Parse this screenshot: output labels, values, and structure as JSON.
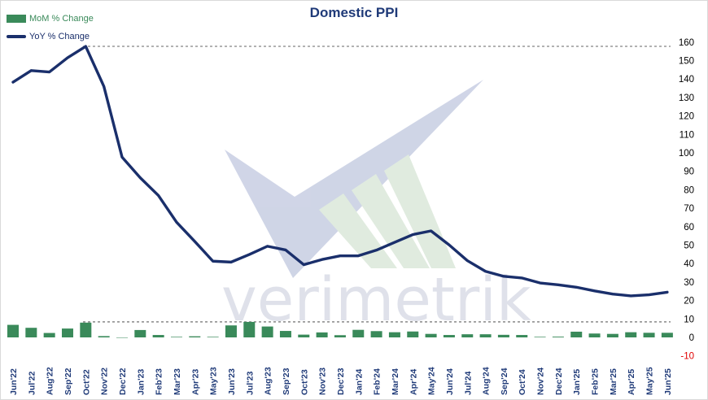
{
  "chart_data": {
    "type": "bar+line",
    "title": "Domestic PPI",
    "legend_position": "top-left",
    "categories": [
      "Jun'22",
      "Jul'22",
      "Aug'22",
      "Sep'22",
      "Oct'22",
      "Nov'22",
      "Dec'22",
      "Jan'23",
      "Feb'23",
      "Mar'23",
      "Apr'23",
      "May'23",
      "Jun'23",
      "Jul'23",
      "Aug'23",
      "Sep'23",
      "Oct'23",
      "Nov'23",
      "Dec'23",
      "Jan'24",
      "Feb'24",
      "Mar'24",
      "Apr'24",
      "May'24",
      "Jun'24",
      "Jul'24",
      "Aug'24",
      "Sep'24",
      "Oct'24",
      "Nov'24",
      "Dec'24",
      "Jan'25",
      "Feb'25",
      "Mar'25",
      "Apr'25",
      "May'25",
      "Jun'25"
    ],
    "series": [
      {
        "name": "MoM % Change",
        "kind": "bar",
        "color": "#3a8a5a",
        "values": [
          6.8,
          5.2,
          2.4,
          4.8,
          8.0,
          0.7,
          -0.2,
          4.0,
          1.3,
          0.3,
          0.6,
          0.3,
          6.5,
          8.4,
          5.9,
          3.5,
          1.5,
          2.7,
          1.2,
          4.1,
          3.4,
          2.8,
          3.2,
          1.9,
          1.3,
          1.7,
          1.7,
          1.4,
          1.3,
          0.3,
          0.4,
          3.1,
          2.1,
          1.9,
          2.8,
          2.5,
          2.5
        ]
      },
      {
        "name": "YoY % Change",
        "kind": "line",
        "color": "#1a2f6b",
        "values": [
          138.3,
          144.6,
          143.8,
          151.5,
          157.7,
          136.0,
          97.7,
          86.5,
          76.9,
          62.4,
          52.0,
          41.3,
          40.8,
          44.9,
          49.4,
          47.4,
          39.4,
          42.2,
          44.2,
          44.2,
          47.3,
          51.5,
          55.7,
          57.7,
          50.1,
          41.6,
          35.8,
          33.1,
          32.2,
          29.5,
          28.5,
          27.2,
          25.2,
          23.5,
          22.5,
          23.1,
          24.5
        ]
      }
    ],
    "y_ticks": [
      -10,
      0,
      10,
      20,
      30,
      40,
      50,
      60,
      70,
      80,
      90,
      100,
      110,
      120,
      130,
      140,
      150,
      160
    ],
    "ylim": [
      -10,
      160
    ],
    "y_axis_side": "right",
    "reference_lines": [
      {
        "series": "YoY % Change",
        "value": 157.7,
        "style": "dashed"
      },
      {
        "series": "MoM % Change",
        "value": 8.4,
        "style": "dashed"
      }
    ],
    "grid": false,
    "watermark": "verimetrik"
  }
}
